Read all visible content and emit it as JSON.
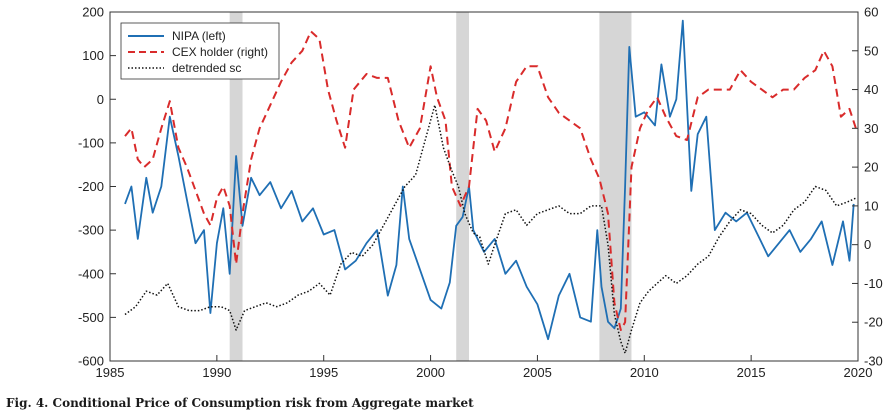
{
  "caption": "Fig. 4.  Conditional Price of Consumption risk from Aggregate market",
  "chart_data": {
    "type": "line",
    "xlim": [
      1985,
      2020
    ],
    "ylim_left": [
      -600,
      200
    ],
    "ylim_right": [
      -30,
      60
    ],
    "x_ticks": [
      1985,
      1990,
      1995,
      2000,
      2005,
      2010,
      2015,
      2020
    ],
    "y_ticks_left": [
      200,
      100,
      0,
      -100,
      -200,
      -300,
      -400,
      -500,
      -600
    ],
    "y_ticks_right": [
      60,
      50,
      40,
      30,
      20,
      10,
      0,
      -10,
      -20,
      -30
    ],
    "grid": false,
    "legend": "top-left",
    "recession_shading": [
      [
        1990.6,
        1991.2
      ],
      [
        2001.2,
        2001.8
      ],
      [
        2007.9,
        2009.4
      ]
    ],
    "series": [
      {
        "name": "NIPA (left)",
        "axis": "left",
        "color": "#1f6fb4",
        "style": "solid",
        "points": [
          [
            1985.7,
            -240
          ],
          [
            1986,
            -200
          ],
          [
            1986.3,
            -320
          ],
          [
            1986.7,
            -180
          ],
          [
            1987,
            -260
          ],
          [
            1987.4,
            -200
          ],
          [
            1987.8,
            -40
          ],
          [
            1988.2,
            -130
          ],
          [
            1988.6,
            -230
          ],
          [
            1989,
            -330
          ],
          [
            1989.4,
            -300
          ],
          [
            1989.7,
            -490
          ],
          [
            1990,
            -330
          ],
          [
            1990.3,
            -250
          ],
          [
            1990.6,
            -400
          ],
          [
            1990.9,
            -130
          ],
          [
            1991.2,
            -290
          ],
          [
            1991.6,
            -180
          ],
          [
            1992,
            -220
          ],
          [
            1992.5,
            -190
          ],
          [
            1993,
            -250
          ],
          [
            1993.5,
            -210
          ],
          [
            1994,
            -280
          ],
          [
            1994.5,
            -250
          ],
          [
            1995,
            -310
          ],
          [
            1995.5,
            -300
          ],
          [
            1996,
            -390
          ],
          [
            1996.5,
            -370
          ],
          [
            1997,
            -330
          ],
          [
            1997.5,
            -300
          ],
          [
            1998,
            -450
          ],
          [
            1998.4,
            -380
          ],
          [
            1998.7,
            -200
          ],
          [
            1999,
            -320
          ],
          [
            1999.5,
            -390
          ],
          [
            2000,
            -460
          ],
          [
            2000.5,
            -480
          ],
          [
            2000.9,
            -420
          ],
          [
            2001.2,
            -290
          ],
          [
            2001.5,
            -270
          ],
          [
            2001.8,
            -200
          ],
          [
            2002,
            -300
          ],
          [
            2002.5,
            -350
          ],
          [
            2003,
            -320
          ],
          [
            2003.5,
            -400
          ],
          [
            2004,
            -370
          ],
          [
            2004.5,
            -430
          ],
          [
            2005,
            -470
          ],
          [
            2005.5,
            -550
          ],
          [
            2006,
            -450
          ],
          [
            2006.5,
            -400
          ],
          [
            2007,
            -500
          ],
          [
            2007.5,
            -510
          ],
          [
            2007.8,
            -300
          ],
          [
            2008,
            -430
          ],
          [
            2008.3,
            -510
          ],
          [
            2008.6,
            -525
          ],
          [
            2008.9,
            -480
          ],
          [
            2009.1,
            -200
          ],
          [
            2009.3,
            120
          ],
          [
            2009.6,
            -40
          ],
          [
            2010,
            -30
          ],
          [
            2010.5,
            -60
          ],
          [
            2010.8,
            80
          ],
          [
            2011.2,
            -40
          ],
          [
            2011.5,
            0
          ],
          [
            2011.8,
            180
          ],
          [
            2012.2,
            -210
          ],
          [
            2012.5,
            -80
          ],
          [
            2012.9,
            -40
          ],
          [
            2013.3,
            -300
          ],
          [
            2013.8,
            -260
          ],
          [
            2014.3,
            -280
          ],
          [
            2014.8,
            -260
          ],
          [
            2015.3,
            -310
          ],
          [
            2015.8,
            -360
          ],
          [
            2016.3,
            -330
          ],
          [
            2016.8,
            -300
          ],
          [
            2017.3,
            -350
          ],
          [
            2017.8,
            -320
          ],
          [
            2018.3,
            -280
          ],
          [
            2018.8,
            -380
          ],
          [
            2019.3,
            -280
          ],
          [
            2019.6,
            -370
          ],
          [
            2019.8,
            -240
          ]
        ]
      },
      {
        "name": "CEX holder (right)",
        "axis": "right",
        "color": "#d92b2b",
        "style": "dashed",
        "points": [
          [
            1985.7,
            28
          ],
          [
            1986,
            30
          ],
          [
            1986.3,
            22
          ],
          [
            1986.6,
            20
          ],
          [
            1987,
            22
          ],
          [
            1987.4,
            30
          ],
          [
            1987.8,
            37
          ],
          [
            1988.2,
            25
          ],
          [
            1988.6,
            20
          ],
          [
            1989,
            14
          ],
          [
            1989.4,
            8
          ],
          [
            1989.7,
            5
          ],
          [
            1990,
            12
          ],
          [
            1990.3,
            15
          ],
          [
            1990.6,
            10
          ],
          [
            1990.9,
            -5
          ],
          [
            1991.2,
            8
          ],
          [
            1991.6,
            22
          ],
          [
            1992,
            30
          ],
          [
            1992.5,
            36
          ],
          [
            1993,
            42
          ],
          [
            1993.5,
            47
          ],
          [
            1994,
            50
          ],
          [
            1994.4,
            55
          ],
          [
            1994.8,
            53
          ],
          [
            1995.2,
            40
          ],
          [
            1995.6,
            32
          ],
          [
            1996,
            25
          ],
          [
            1996.4,
            40
          ],
          [
            1997,
            44
          ],
          [
            1997.5,
            43
          ],
          [
            1998,
            43
          ],
          [
            1998.5,
            32
          ],
          [
            1999,
            25
          ],
          [
            1999.5,
            30
          ],
          [
            2000,
            46
          ],
          [
            2000.3,
            38
          ],
          [
            2000.7,
            32
          ],
          [
            2001,
            15
          ],
          [
            2001.4,
            10
          ],
          [
            2001.8,
            15
          ],
          [
            2002.2,
            35
          ],
          [
            2002.6,
            32
          ],
          [
            2003,
            24
          ],
          [
            2003.5,
            30
          ],
          [
            2004,
            42
          ],
          [
            2004.5,
            46
          ],
          [
            2005,
            46
          ],
          [
            2005.5,
            38
          ],
          [
            2006,
            34
          ],
          [
            2006.5,
            32
          ],
          [
            2007,
            30
          ],
          [
            2007.5,
            22
          ],
          [
            2007.9,
            17
          ],
          [
            2008.3,
            8
          ],
          [
            2008.6,
            -15
          ],
          [
            2008.9,
            -22
          ],
          [
            2009.1,
            -20
          ],
          [
            2009.4,
            20
          ],
          [
            2009.8,
            30
          ],
          [
            2010.2,
            35
          ],
          [
            2010.6,
            38
          ],
          [
            2011,
            33
          ],
          [
            2011.5,
            28
          ],
          [
            2012,
            27
          ],
          [
            2012.5,
            38
          ],
          [
            2013,
            40
          ],
          [
            2013.5,
            40
          ],
          [
            2014,
            40
          ],
          [
            2014.5,
            45
          ],
          [
            2015,
            42
          ],
          [
            2015.5,
            40
          ],
          [
            2016,
            38
          ],
          [
            2016.5,
            40
          ],
          [
            2017,
            40
          ],
          [
            2017.5,
            43
          ],
          [
            2018,
            45
          ],
          [
            2018.4,
            50
          ],
          [
            2018.8,
            46
          ],
          [
            2019.2,
            33
          ],
          [
            2019.6,
            35
          ],
          [
            2019.9,
            30
          ]
        ]
      },
      {
        "name": "detrended sc",
        "axis": "right",
        "color": "#111111",
        "style": "dotted",
        "points": [
          [
            1985.7,
            -18
          ],
          [
            1986.2,
            -16
          ],
          [
            1986.7,
            -12
          ],
          [
            1987.2,
            -13
          ],
          [
            1987.7,
            -10
          ],
          [
            1988.2,
            -16
          ],
          [
            1988.7,
            -17
          ],
          [
            1989.2,
            -17
          ],
          [
            1989.7,
            -16
          ],
          [
            1990.2,
            -16
          ],
          [
            1990.6,
            -17
          ],
          [
            1990.9,
            -22
          ],
          [
            1991.3,
            -17
          ],
          [
            1991.8,
            -16
          ],
          [
            1992.3,
            -15
          ],
          [
            1992.8,
            -16
          ],
          [
            1993.3,
            -15
          ],
          [
            1993.8,
            -13
          ],
          [
            1994.3,
            -12
          ],
          [
            1994.8,
            -10
          ],
          [
            1995.3,
            -13
          ],
          [
            1995.8,
            -5
          ],
          [
            1996.3,
            -2
          ],
          [
            1996.8,
            -3
          ],
          [
            1997.3,
            0
          ],
          [
            1997.8,
            5
          ],
          [
            1998.3,
            10
          ],
          [
            1998.8,
            15
          ],
          [
            1999.3,
            18
          ],
          [
            1999.8,
            28
          ],
          [
            2000.2,
            36
          ],
          [
            2000.6,
            25
          ],
          [
            2001,
            19
          ],
          [
            2001.3,
            15
          ],
          [
            2001.6,
            8
          ],
          [
            2002,
            3
          ],
          [
            2002.3,
            2
          ],
          [
            2002.7,
            -5
          ],
          [
            2003,
            0
          ],
          [
            2003.5,
            8
          ],
          [
            2004,
            9
          ],
          [
            2004.5,
            5
          ],
          [
            2005,
            8
          ],
          [
            2005.5,
            9
          ],
          [
            2006,
            10
          ],
          [
            2006.5,
            8
          ],
          [
            2007,
            8
          ],
          [
            2007.5,
            10
          ],
          [
            2008,
            10
          ],
          [
            2008.3,
            0
          ],
          [
            2008.6,
            -18
          ],
          [
            2008.9,
            -25
          ],
          [
            2009.1,
            -28
          ],
          [
            2009.4,
            -22
          ],
          [
            2009.8,
            -15
          ],
          [
            2010.2,
            -12
          ],
          [
            2010.6,
            -10
          ],
          [
            2011,
            -8
          ],
          [
            2011.5,
            -10
          ],
          [
            2012,
            -8
          ],
          [
            2012.5,
            -5
          ],
          [
            2013,
            -3
          ],
          [
            2013.5,
            2
          ],
          [
            2014,
            6
          ],
          [
            2014.5,
            9
          ],
          [
            2015,
            8
          ],
          [
            2015.5,
            5
          ],
          [
            2016,
            3
          ],
          [
            2016.5,
            5
          ],
          [
            2017,
            9
          ],
          [
            2017.5,
            11
          ],
          [
            2018,
            15
          ],
          [
            2018.5,
            14
          ],
          [
            2019,
            10
          ],
          [
            2019.5,
            11
          ],
          [
            2019.9,
            12
          ]
        ]
      }
    ]
  }
}
